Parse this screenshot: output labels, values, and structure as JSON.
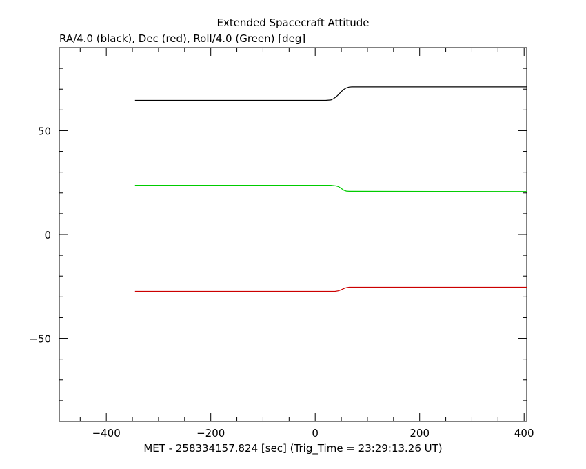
{
  "chart_data": {
    "type": "line",
    "title": "Extended Spacecraft Attitude",
    "subtitle": "RA/4.0 (black), Dec (red), Roll/4.0 (Green) [deg]",
    "xlabel": "MET - 258334157.824 [sec] (Trig_Time = 23:29:13.26 UT)",
    "ylabel": "",
    "xlim": [
      -490,
      405
    ],
    "ylim": [
      -90,
      90
    ],
    "x_ticks": [
      -400,
      -200,
      0,
      200,
      400
    ],
    "x_tick_labels": [
      "−400",
      "−200",
      "0",
      "200",
      "400"
    ],
    "y_ticks": [
      -50,
      0,
      50
    ],
    "y_tick_labels": [
      "−50",
      "0",
      "50"
    ],
    "grid": false,
    "series": [
      {
        "color": "#000000",
        "x": [
          -345,
          20,
          30,
          35,
          40,
          45,
          50,
          55,
          60,
          65,
          70,
          405
        ],
        "values": [
          64.6,
          64.6,
          64.8,
          65.4,
          66.3,
          67.5,
          68.8,
          69.9,
          70.6,
          71.0,
          71.1,
          71.1
        ]
      },
      {
        "color": "#00cc00",
        "x": [
          -345,
          30,
          40,
          45,
          50,
          55,
          60,
          65,
          405
        ],
        "values": [
          23.7,
          23.7,
          23.4,
          23.0,
          22.2,
          21.3,
          20.9,
          20.8,
          20.7
        ]
      },
      {
        "color": "#cc0000",
        "x": [
          -345,
          38,
          45,
          50,
          55,
          60,
          65,
          405
        ],
        "values": [
          -27.4,
          -27.4,
          -27.1,
          -26.6,
          -26.0,
          -25.6,
          -25.4,
          -25.4
        ]
      }
    ]
  }
}
